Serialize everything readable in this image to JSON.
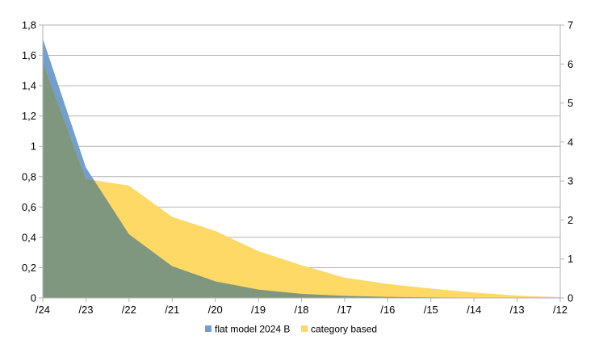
{
  "chart_data": {
    "type": "area",
    "categories": [
      "/24",
      "/23",
      "/22",
      "/21",
      "/20",
      "/19",
      "/18",
      "/17",
      "/16",
      "/15",
      "/14",
      "/13",
      "/12"
    ],
    "series": [
      {
        "name": "flat model 2024 B",
        "axis": "left",
        "color": "#729fcf",
        "values": [
          1.71,
          0.86,
          0.42,
          0.21,
          0.11,
          0.055,
          0.027,
          0.014,
          0.007,
          0.004,
          0.002,
          0.001,
          0.0
        ]
      },
      {
        "name": "category based",
        "axis": "right",
        "color": "#ffd966",
        "values": [
          6.05,
          3.05,
          2.88,
          2.08,
          1.72,
          1.2,
          0.84,
          0.52,
          0.36,
          0.24,
          0.14,
          0.06,
          0.02
        ]
      }
    ],
    "overlap_color": "#7f977f",
    "ylim_left": [
      0,
      1.8
    ],
    "ylim_right": [
      0,
      7
    ],
    "left_ticks": [
      "0",
      "0,2",
      "0,4",
      "0,6",
      "0,8",
      "1",
      "1,2",
      "1,4",
      "1,6",
      "1,8"
    ],
    "right_ticks": [
      "0",
      "1",
      "2",
      "3",
      "4",
      "5",
      "6",
      "7"
    ],
    "grid": true,
    "legend_position": "bottom"
  }
}
